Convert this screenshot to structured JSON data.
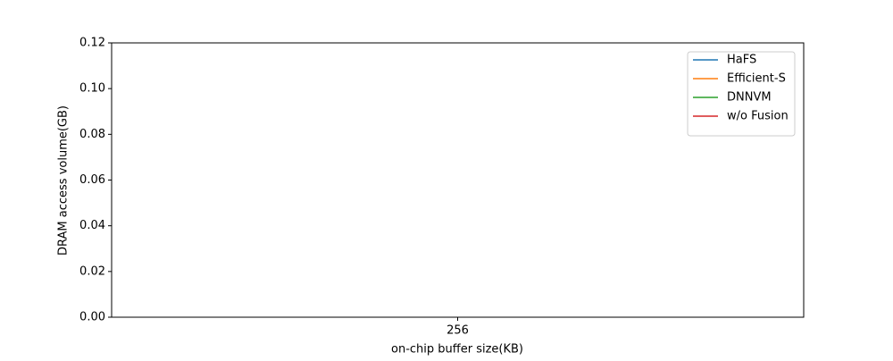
{
  "chart_data": {
    "type": "line",
    "xlabel": "on-chip buffer size(KB)",
    "ylabel": "DRAM access volume(GB)",
    "categories": [
      "256"
    ],
    "series": [
      {
        "name": "HaFS",
        "color": "#1f77b4",
        "values": [
          null
        ]
      },
      {
        "name": "Efficient-S",
        "color": "#ff7f0e",
        "values": [
          null
        ]
      },
      {
        "name": "DNNVM",
        "color": "#2ca02c",
        "values": [
          null
        ]
      },
      {
        "name": "w/o Fusion",
        "color": "#d62728",
        "values": [
          null
        ]
      }
    ],
    "ylim": [
      0,
      0.12
    ],
    "yticks": [
      {
        "value": 0,
        "label": "0.00"
      },
      {
        "value": 0.02,
        "label": "0.02"
      },
      {
        "value": 0.04,
        "label": "0.04"
      },
      {
        "value": 0.06,
        "label": "0.06"
      },
      {
        "value": 0.08,
        "label": "0.08"
      },
      {
        "value": 0.1,
        "label": "0.10"
      },
      {
        "value": 0.12,
        "label": "0.12"
      }
    ],
    "legend": "upper right"
  }
}
